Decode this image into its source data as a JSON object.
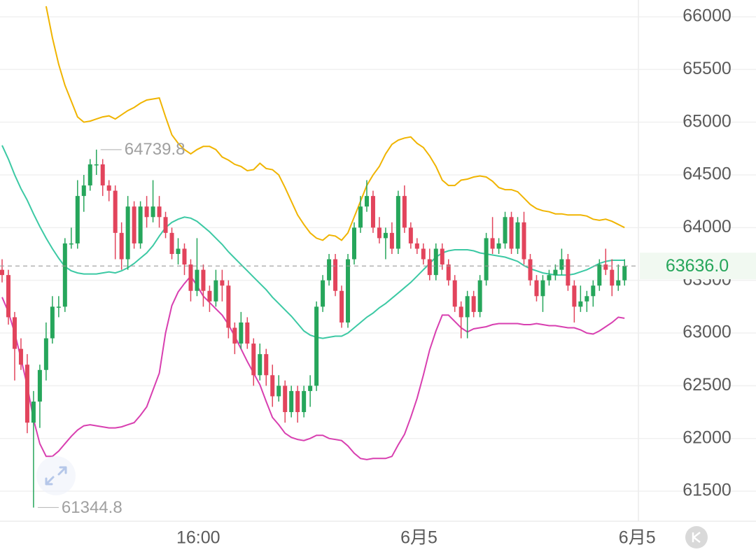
{
  "chart_data": {
    "type": "candlestick",
    "open": [
      63600,
      63550,
      63150,
      62850,
      62700,
      62150,
      62350,
      62650,
      62950,
      63250,
      63250,
      63850,
      63850,
      64300,
      64400,
      64600,
      64600,
      64400,
      64350,
      63950,
      63700,
      64200,
      63850,
      64200,
      64100,
      64200,
      64100,
      63950,
      63750,
      63800,
      63650,
      63400,
      63600,
      63400,
      63300,
      63500,
      63450,
      63050,
      62900,
      63100,
      62900,
      62600,
      62800,
      62600,
      62400,
      62500,
      62250,
      62450,
      62250,
      62450,
      62500,
      63250,
      63500,
      63700,
      63400,
      63100,
      63700,
      64000,
      64200,
      64300,
      64000,
      63900,
      63950,
      63800,
      64300,
      64000,
      63850,
      63800,
      63700,
      63550,
      63800,
      63650,
      63500,
      63250,
      63150,
      63350,
      63200,
      63500,
      63900,
      63800,
      63850,
      64100,
      63800,
      64050,
      63700,
      63500,
      63350,
      63500,
      63550,
      63600,
      63700,
      63450,
      63250,
      63300,
      63350,
      63450,
      63650,
      63600,
      63450,
      63500
    ],
    "high": [
      63700,
      63600,
      63200,
      62950,
      62800,
      62450,
      62700,
      63100,
      63350,
      63350,
      63900,
      64000,
      64450,
      64500,
      64650,
      64739.8,
      64650,
      64450,
      64400,
      64050,
      64300,
      64250,
      64250,
      64300,
      64450,
      64300,
      64150,
      64000,
      63900,
      63850,
      63700,
      63900,
      63650,
      63450,
      63600,
      63600,
      63500,
      63100,
      63200,
      63150,
      62950,
      62900,
      62850,
      62700,
      62600,
      62550,
      62500,
      62500,
      62500,
      62600,
      63300,
      63550,
      63750,
      63750,
      63450,
      63750,
      64050,
      64300,
      64450,
      64350,
      64100,
      64000,
      64050,
      64350,
      64400,
      64050,
      63900,
      63850,
      63800,
      63850,
      63850,
      63700,
      63550,
      63300,
      63400,
      63400,
      63550,
      63950,
      64100,
      63900,
      64150,
      64150,
      64100,
      64150,
      63750,
      63550,
      63550,
      63600,
      63650,
      63800,
      63750,
      63500,
      63450,
      63400,
      63500,
      63700,
      63800,
      63700,
      63650,
      63700
    ],
    "low": [
      63480,
      63080,
      62550,
      62650,
      62050,
      61344.8,
      62100,
      62550,
      62900,
      63150,
      63200,
      63800,
      63800,
      64150,
      64350,
      64500,
      64300,
      64250,
      63700,
      63600,
      63600,
      63800,
      63800,
      64000,
      64050,
      64000,
      63900,
      63700,
      63650,
      63550,
      63300,
      63350,
      63250,
      63200,
      63250,
      63300,
      62950,
      62800,
      62850,
      62850,
      62500,
      62550,
      62500,
      62300,
      62350,
      62150,
      62200,
      62150,
      62200,
      62300,
      62450,
      63200,
      63450,
      63350,
      63050,
      63050,
      63650,
      63950,
      64150,
      63950,
      63850,
      63700,
      63750,
      63750,
      63950,
      63800,
      63750,
      63650,
      63500,
      63500,
      63600,
      63450,
      63200,
      62950,
      62950,
      63150,
      63150,
      63450,
      63750,
      63750,
      63800,
      63750,
      63750,
      63650,
      63450,
      63300,
      63200,
      63450,
      63500,
      63550,
      63400,
      63100,
      63200,
      63200,
      63250,
      63400,
      63550,
      63350,
      63400,
      63450
    ],
    "close": [
      63550,
      63150,
      62850,
      62700,
      62150,
      62350,
      62650,
      62950,
      63250,
      63250,
      63850,
      63850,
      64300,
      64400,
      64600,
      64600,
      64400,
      64350,
      63950,
      63700,
      64200,
      63850,
      64200,
      64100,
      64200,
      64100,
      63950,
      63750,
      63800,
      63650,
      63400,
      63600,
      63400,
      63300,
      63500,
      63450,
      63050,
      62900,
      63100,
      62900,
      62600,
      62800,
      62600,
      62400,
      62500,
      62250,
      62450,
      62250,
      62450,
      62500,
      63250,
      63500,
      63700,
      63400,
      63100,
      63700,
      64000,
      64200,
      64300,
      64000,
      63900,
      63950,
      63800,
      64300,
      64000,
      63850,
      63800,
      63700,
      63550,
      63800,
      63650,
      63500,
      63250,
      63150,
      63350,
      63200,
      63500,
      63900,
      63800,
      63850,
      64100,
      63800,
      64050,
      63700,
      63500,
      63350,
      63500,
      63550,
      63600,
      63700,
      63450,
      63250,
      63300,
      63350,
      63450,
      63650,
      63600,
      63450,
      63500,
      63636
    ],
    "last_price_label": "63636.0",
    "up_color": "#26a65b",
    "down_color": "#e2445c",
    "series": [
      {
        "name": "UP",
        "type": "line",
        "color": "#f0b400",
        "values": [
          null,
          null,
          null,
          null,
          null,
          null,
          null,
          66100,
          65800,
          65550,
          65350,
          65200,
          65050,
          65000,
          65010,
          65030,
          65050,
          65060,
          65030,
          65070,
          65110,
          65140,
          65180,
          65210,
          65220,
          65230,
          65050,
          64880,
          64800,
          64740,
          64700,
          64740,
          64770,
          64770,
          64740,
          64670,
          64640,
          64600,
          64580,
          64540,
          64550,
          64610,
          64560,
          64550,
          64500,
          64380,
          64250,
          64120,
          64030,
          63950,
          63900,
          63880,
          63930,
          63920,
          63880,
          63950,
          64100,
          64250,
          64400,
          64500,
          64580,
          64700,
          64790,
          64830,
          64850,
          64860,
          64800,
          64760,
          64680,
          64580,
          64450,
          64400,
          64400,
          64450,
          64460,
          64480,
          64490,
          64480,
          64440,
          64380,
          64360,
          64360,
          64340,
          64280,
          64220,
          64180,
          64160,
          64150,
          64130,
          64130,
          64120,
          64120,
          64120,
          64110,
          64080,
          64070,
          64080,
          64060,
          64030,
          64000
        ]
      },
      {
        "name": "MB",
        "type": "line",
        "color": "#3cc9a4",
        "values": [
          64780,
          64650,
          64500,
          64370,
          64260,
          64130,
          64010,
          63900,
          63800,
          63710,
          63630,
          63590,
          63570,
          63560,
          63560,
          63560,
          63570,
          63580,
          63570,
          63590,
          63620,
          63660,
          63710,
          63760,
          63830,
          63920,
          64000,
          64050,
          64080,
          64100,
          64090,
          64060,
          64010,
          63960,
          63900,
          63840,
          63770,
          63710,
          63650,
          63590,
          63530,
          63470,
          63410,
          63340,
          63280,
          63220,
          63160,
          63090,
          63020,
          62980,
          62960,
          62950,
          62960,
          62970,
          62970,
          63000,
          63050,
          63100,
          63150,
          63190,
          63240,
          63280,
          63330,
          63380,
          63430,
          63480,
          63540,
          63600,
          63660,
          63720,
          63760,
          63780,
          63790,
          63790,
          63790,
          63780,
          63760,
          63750,
          63740,
          63730,
          63720,
          63700,
          63680,
          63640,
          63610,
          63590,
          63570,
          63560,
          63550,
          63550,
          63550,
          63560,
          63580,
          63600,
          63630,
          63660,
          63680,
          63690,
          63690,
          63690
        ]
      },
      {
        "name": "DN",
        "type": "line",
        "color": "#d83fb0",
        "values": [
          63340,
          63200,
          63000,
          62760,
          62500,
          62180,
          61950,
          61830,
          61830,
          61880,
          61950,
          62020,
          62080,
          62120,
          62130,
          62120,
          62110,
          62100,
          62100,
          62110,
          62130,
          62150,
          62220,
          62300,
          62460,
          62620,
          63000,
          63260,
          63390,
          63470,
          63540,
          63450,
          63350,
          63290,
          63230,
          63170,
          63080,
          62970,
          62850,
          62730,
          62620,
          62510,
          62350,
          62200,
          62130,
          62050,
          62010,
          61990,
          61980,
          62000,
          62030,
          62030,
          62000,
          61990,
          61980,
          61930,
          61860,
          61810,
          61800,
          61810,
          61810,
          61810,
          61830,
          61940,
          62040,
          62200,
          62380,
          62600,
          62840,
          63020,
          63170,
          63170,
          63110,
          63050,
          63010,
          63040,
          63050,
          63060,
          63080,
          63090,
          63090,
          63090,
          63090,
          63080,
          63080,
          63090,
          63080,
          63070,
          63070,
          63060,
          63050,
          63050,
          63030,
          63000,
          62990,
          63020,
          63060,
          63100,
          63150,
          63140
        ]
      }
    ],
    "xlim": [
      -0.334,
      101.2
    ],
    "xticks": [
      {
        "value": 31.2,
        "label": "16:00"
      },
      {
        "value": 66.3,
        "label": "6月5"
      },
      {
        "value": 101,
        "label": "6月5"
      }
    ],
    "ylim": [
      61215,
      66159
    ],
    "yticks": [
      61500,
      62000,
      62500,
      63000,
      63500,
      64000,
      64500,
      65000,
      65500,
      66000
    ],
    "grid": true
  }
}
